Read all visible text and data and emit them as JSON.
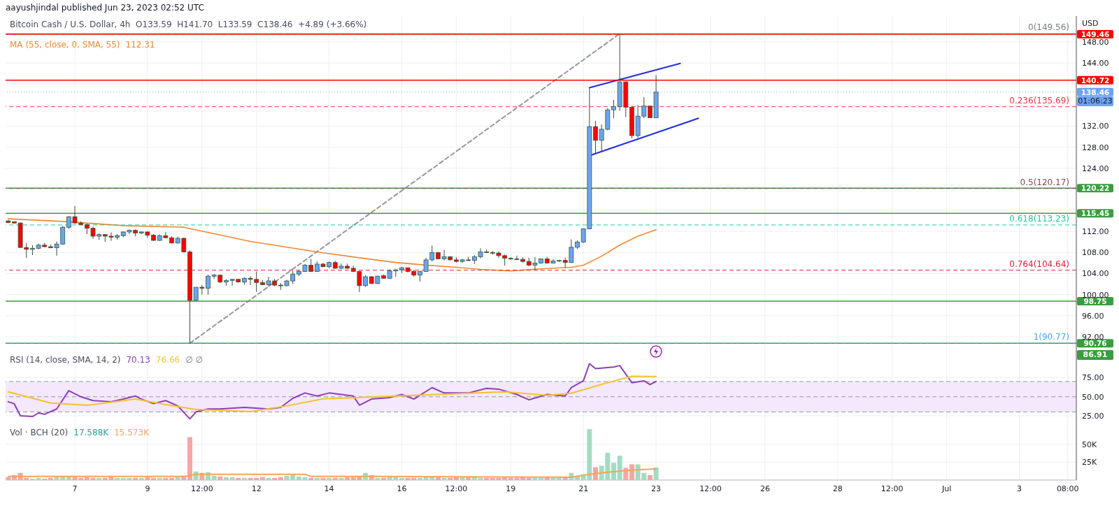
{
  "chart_data": [
    {
      "type": "candlestick",
      "title": "aayushjindal published Jun 23, 2023 02:52 UTC",
      "subtitle": "Bitcoin Cash / U.S. Dollar, 4h  O133.59  H141.70  L133.59  C138.46  +4.89 (+3.66%)",
      "ylabel": "USD",
      "x": [
        "2023-06-05T04:00",
        "2023-06-05T08:00",
        "2023-06-05T12:00",
        "2023-06-05T16:00",
        "2023-06-05T20:00",
        "2023-06-06T00:00",
        "2023-06-06T04:00",
        "2023-06-06T08:00",
        "2023-06-06T12:00",
        "2023-06-06T16:00",
        "2023-06-06T20:00",
        "2023-06-07T00:00",
        "2023-06-07T04:00",
        "2023-06-07T08:00",
        "2023-06-07T12:00",
        "2023-06-07T16:00",
        "2023-06-07T20:00",
        "2023-06-08T00:00",
        "2023-06-08T04:00",
        "2023-06-08T08:00",
        "2023-06-08T12:00",
        "2023-06-08T16:00",
        "2023-06-08T20:00",
        "2023-06-09T00:00",
        "2023-06-09T04:00",
        "2023-06-09T08:00",
        "2023-06-09T12:00",
        "2023-06-09T16:00",
        "2023-06-09T20:00",
        "2023-06-10T00:00",
        "2023-06-10T04:00",
        "2023-06-10T08:00",
        "2023-06-10T12:00",
        "2023-06-10T16:00",
        "2023-06-10T20:00",
        "2023-06-11T00:00",
        "2023-06-11T04:00",
        "2023-06-11T08:00",
        "2023-06-11T12:00",
        "2023-06-11T16:00",
        "2023-06-11T20:00",
        "2023-06-12T00:00",
        "2023-06-12T04:00",
        "2023-06-12T08:00",
        "2023-06-12T12:00",
        "2023-06-12T16:00",
        "2023-06-12T20:00",
        "2023-06-13T00:00",
        "2023-06-13T04:00",
        "2023-06-13T08:00",
        "2023-06-13T12:00",
        "2023-06-13T16:00",
        "2023-06-13T20:00",
        "2023-06-14T00:00",
        "2023-06-14T04:00",
        "2023-06-14T08:00",
        "2023-06-14T12:00",
        "2023-06-14T16:00",
        "2023-06-14T20:00",
        "2023-06-15T00:00",
        "2023-06-15T04:00",
        "2023-06-15T08:00",
        "2023-06-15T12:00",
        "2023-06-15T16:00",
        "2023-06-15T20:00",
        "2023-06-16T00:00",
        "2023-06-16T04:00",
        "2023-06-16T08:00",
        "2023-06-16T12:00",
        "2023-06-16T16:00",
        "2023-06-16T20:00",
        "2023-06-17T00:00",
        "2023-06-17T04:00",
        "2023-06-17T08:00",
        "2023-06-17T12:00",
        "2023-06-17T16:00",
        "2023-06-17T20:00",
        "2023-06-18T00:00",
        "2023-06-18T04:00",
        "2023-06-18T08:00",
        "2023-06-18T12:00",
        "2023-06-18T16:00",
        "2023-06-18T20:00",
        "2023-06-19T00:00",
        "2023-06-19T04:00",
        "2023-06-19T08:00",
        "2023-06-19T12:00",
        "2023-06-19T16:00",
        "2023-06-19T20:00",
        "2023-06-20T00:00",
        "2023-06-20T04:00",
        "2023-06-20T08:00",
        "2023-06-20T12:00",
        "2023-06-20T16:00",
        "2023-06-20T20:00",
        "2023-06-21T00:00",
        "2023-06-21T04:00",
        "2023-06-21T08:00",
        "2023-06-21T12:00",
        "2023-06-21T16:00",
        "2023-06-21T20:00",
        "2023-06-22T00:00",
        "2023-06-22T04:00",
        "2023-06-22T08:00",
        "2023-06-22T12:00",
        "2023-06-22T16:00",
        "2023-06-22T20:00",
        "2023-06-23T00:00"
      ],
      "ohlc": [
        [
          114.0,
          114.2,
          113.6,
          113.7
        ],
        [
          113.85,
          113.9,
          113.5,
          113.6
        ],
        [
          113.6,
          113.7,
          108.9,
          108.95
        ],
        [
          108.95,
          109.8,
          106.95,
          108.6
        ],
        [
          108.6,
          109.4,
          107.5,
          108.8
        ],
        [
          108.8,
          109.7,
          108.6,
          109.4
        ],
        [
          109.4,
          109.8,
          109.0,
          109.1
        ],
        [
          109.1,
          109.5,
          108.8,
          108.9
        ],
        [
          108.9,
          110.1,
          107.4,
          109.6
        ],
        [
          109.6,
          113.0,
          109.5,
          112.8
        ],
        [
          112.8,
          114.9,
          112.5,
          114.8
        ],
        [
          114.8,
          116.8,
          113.5,
          113.6
        ],
        [
          113.6,
          113.9,
          113.2,
          113.3
        ],
        [
          113.3,
          113.5,
          111.5,
          112.6
        ],
        [
          112.6,
          112.9,
          110.6,
          111.1
        ],
        [
          111.1,
          111.6,
          110.4,
          111.4
        ],
        [
          111.4,
          111.5,
          110.0,
          111.1
        ],
        [
          111.1,
          111.8,
          110.2,
          110.9
        ],
        [
          110.9,
          111.5,
          110.4,
          111.2
        ],
        [
          111.2,
          112.0,
          110.9,
          111.9
        ],
        [
          111.9,
          112.4,
          111.5,
          112.2
        ],
        [
          112.2,
          112.4,
          111.1,
          111.7
        ],
        [
          111.7,
          112.0,
          111.5,
          111.9
        ],
        [
          111.9,
          112.0,
          110.8,
          111.3
        ],
        [
          111.3,
          111.5,
          110.2,
          110.3
        ],
        [
          110.3,
          111.4,
          110.2,
          111.2
        ],
        [
          111.2,
          111.9,
          110.7,
          110.8
        ],
        [
          110.8,
          111.1,
          109.7,
          109.8
        ],
        [
          109.8,
          111.0,
          109.7,
          110.7
        ],
        [
          110.7,
          110.8,
          108.0,
          108.1
        ],
        [
          108.1,
          108.4,
          90.77,
          98.9
        ],
        [
          98.9,
          101.4,
          98.8,
          101.4
        ],
        [
          101.4,
          101.8,
          100.0,
          101.2
        ],
        [
          101.2,
          103.8,
          100.0,
          103.5
        ],
        [
          103.5,
          103.9,
          103.0,
          103.7
        ],
        [
          103.7,
          103.8,
          102.2,
          102.4
        ],
        [
          102.4,
          102.9,
          101.7,
          102.7
        ],
        [
          102.7,
          103.0,
          101.7,
          102.9
        ],
        [
          102.9,
          103.0,
          102.3,
          102.4
        ],
        [
          102.4,
          103.3,
          101.9,
          103.1
        ],
        [
          103.1,
          103.5,
          101.8,
          102.9
        ],
        [
          102.9,
          104.4,
          100.5,
          102.3
        ],
        [
          102.3,
          102.8,
          101.8,
          101.9
        ],
        [
          101.9,
          103.4,
          101.6,
          102.6
        ],
        [
          102.6,
          103.0,
          101.6,
          101.8
        ],
        [
          101.8,
          102.2,
          100.9,
          101.7
        ],
        [
          101.7,
          102.8,
          101.6,
          102.6
        ],
        [
          102.6,
          104.5,
          102.0,
          103.9
        ],
        [
          103.9,
          104.6,
          103.5,
          104.4
        ],
        [
          104.4,
          105.8,
          104.3,
          105.6
        ],
        [
          105.6,
          106.8,
          104.3,
          104.4
        ],
        [
          104.4,
          106.3,
          104.3,
          105.8
        ],
        [
          105.8,
          106.0,
          105.2,
          105.3
        ],
        [
          105.3,
          106.3,
          105.0,
          106.1
        ],
        [
          106.1,
          106.4,
          104.9,
          105.0
        ],
        [
          105.0,
          105.9,
          104.9,
          105.4
        ],
        [
          105.4,
          105.9,
          104.9,
          105.0
        ],
        [
          105.0,
          105.5,
          104.3,
          104.4
        ],
        [
          104.4,
          104.5,
          100.5,
          101.7
        ],
        [
          101.7,
          103.7,
          101.5,
          103.4
        ],
        [
          103.4,
          103.5,
          102.0,
          102.1
        ],
        [
          102.1,
          103.6,
          102.0,
          103.5
        ],
        [
          103.6,
          103.8,
          103.0,
          103.1
        ],
        [
          103.1,
          104.8,
          103.0,
          104.5
        ],
        [
          104.5,
          104.9,
          103.4,
          104.7
        ],
        [
          104.7,
          105.3,
          104.1,
          105.1
        ],
        [
          105.1,
          105.2,
          104.2,
          104.4
        ],
        [
          104.4,
          104.7,
          103.4,
          103.7
        ],
        [
          103.7,
          104.5,
          102.5,
          104.4
        ],
        [
          104.4,
          107.0,
          104.3,
          106.6
        ],
        [
          106.6,
          109.3,
          106.3,
          108.0
        ],
        [
          108.0,
          108.1,
          106.7,
          106.8
        ],
        [
          106.8,
          108.5,
          106.5,
          107.2
        ],
        [
          107.2,
          107.3,
          106.5,
          106.6
        ],
        [
          106.6,
          107.1,
          106.1,
          106.3
        ],
        [
          106.3,
          106.8,
          106.0,
          106.6
        ],
        [
          106.6,
          107.2,
          106.4,
          106.5
        ],
        [
          106.5,
          107.5,
          105.8,
          107.2
        ],
        [
          107.2,
          108.8,
          106.9,
          108.1
        ],
        [
          108.1,
          108.6,
          107.9,
          108.0
        ],
        [
          108.0,
          108.3,
          107.6,
          107.9
        ],
        [
          107.9,
          108.2,
          107.0,
          107.4
        ],
        [
          107.4,
          107.6,
          105.5,
          106.9
        ],
        [
          106.9,
          107.1,
          106.6,
          106.8
        ],
        [
          106.8,
          107.4,
          106.6,
          106.7
        ],
        [
          106.7,
          107.1,
          106.1,
          106.3
        ],
        [
          106.3,
          107.0,
          105.4,
          105.6
        ],
        [
          105.6,
          107.1,
          104.7,
          106.0
        ],
        [
          106.0,
          106.8,
          105.9,
          106.8
        ],
        [
          106.8,
          107.2,
          105.9,
          106.0
        ],
        [
          106.0,
          106.7,
          105.9,
          106.4
        ],
        [
          106.4,
          106.6,
          106.2,
          106.5
        ],
        [
          106.5,
          107.0,
          105.1,
          106.1
        ],
        [
          106.1,
          110.5,
          106.0,
          109.0
        ],
        [
          109.0,
          110.3,
          108.7,
          110.0
        ],
        [
          110.0,
          112.6,
          109.8,
          112.5
        ],
        [
          112.5,
          139.3,
          112.4,
          131.9
        ],
        [
          131.9,
          133.0,
          126.9,
          129.3
        ],
        [
          129.3,
          132.3,
          127.0,
          131.4
        ],
        [
          131.4,
          135.4,
          131.2,
          135.1
        ],
        [
          135.1,
          137.0,
          133.5,
          135.7
        ],
        [
          135.7,
          149.46,
          134.9,
          140.4
        ],
        [
          140.4,
          140.5,
          133.7,
          135.6
        ],
        [
          135.6,
          135.8,
          129.7,
          130.2
        ],
        [
          130.2,
          136.0,
          129.8,
          133.9
        ],
        [
          133.9,
          137.5,
          133.5,
          135.8
        ],
        [
          135.8,
          135.9,
          133.59,
          133.59
        ],
        [
          133.59,
          141.7,
          133.59,
          138.46
        ]
      ],
      "colors": [
        "#ff0000",
        "#ff0000",
        "#ff0000",
        "#ff0000",
        "#6ea3f2",
        "#6ea3f2",
        "#ff0000",
        "#ff0000",
        "#6ea3f2",
        "#6ea3f2",
        "#6ea3f2",
        "#ff0000",
        "#ff0000",
        "#ff0000",
        "#ff0000",
        "#6ea3f2",
        "#ff0000",
        "#ff0000",
        "#6ea3f2",
        "#6ea3f2",
        "#6ea3f2",
        "#ff0000",
        "#6ea3f2",
        "#ff0000",
        "#ff0000",
        "#6ea3f2",
        "#ff0000",
        "#ff0000",
        "#6ea3f2",
        "#ff0000",
        "#ff0000",
        "#6ea3f2",
        "#ff0000",
        "#6ea3f2",
        "#6ea3f2",
        "#ff0000",
        "#6ea3f2",
        "#6ea3f2",
        "#ff0000",
        "#6ea3f2",
        "#ff0000",
        "#ff0000",
        "#ff0000",
        "#6ea3f2",
        "#ff0000",
        "#ff0000",
        "#6ea3f2",
        "#6ea3f2",
        "#6ea3f2",
        "#6ea3f2",
        "#ff0000",
        "#6ea3f2",
        "#ff0000",
        "#6ea3f2",
        "#ff0000",
        "#6ea3f2",
        "#ff0000",
        "#ff0000",
        "#ff0000",
        "#6ea3f2",
        "#ff0000",
        "#6ea3f2",
        "#ff0000",
        "#6ea3f2",
        "#6ea3f2",
        "#6ea3f2",
        "#ff0000",
        "#ff0000",
        "#6ea3f2",
        "#6ea3f2",
        "#6ea3f2",
        "#ff0000",
        "#6ea3f2",
        "#ff0000",
        "#ff0000",
        "#6ea3f2",
        "#ff0000",
        "#6ea3f2",
        "#6ea3f2",
        "#ff0000",
        "#ff0000",
        "#ff0000",
        "#ff0000",
        "#ff0000",
        "#ff0000",
        "#ff0000",
        "#ff0000",
        "#6ea3f2",
        "#6ea3f2",
        "#ff0000",
        "#6ea3f2",
        "#6ea3f2",
        "#ff0000",
        "#6ea3f2",
        "#6ea3f2",
        "#6ea3f2",
        "#6ea3f2",
        "#ff0000",
        "#6ea3f2",
        "#6ea3f2",
        "#6ea3f2",
        "#6ea3f2",
        "#ff0000",
        "#ff0000",
        "#6ea3f2",
        "#6ea3f2",
        "#ff0000",
        "#6ea3f2"
      ],
      "series": [
        {
          "type": "line",
          "name": "MA (55, close, 0, SMA, 55)",
          "color": "#f0892f",
          "x": [
            "2023-06-05T04:00",
            "2023-06-06T16:00",
            "2023-06-08T08:00",
            "2023-06-10T00:00",
            "2023-06-11T20:00",
            "2023-06-13T16:00",
            "2023-06-14T20:00",
            "2023-06-15T20:00",
            "2023-06-16T16:00",
            "2023-06-17T12:00",
            "2023-06-18T04:00",
            "2023-06-19T00:00",
            "2023-06-19T20:00",
            "2023-06-20T16:00",
            "2023-06-21T00:00",
            "2023-06-21T12:00",
            "2023-06-22T00:00",
            "2023-06-22T12:00",
            "2023-06-23T00:00"
          ],
          "values": [
            114.4,
            113.9,
            113.1,
            112.8,
            110.1,
            108.1,
            107.0,
            106.1,
            105.6,
            105.2,
            104.8,
            104.5,
            104.9,
            105.2,
            105.6,
            107.3,
            109.4,
            111.1,
            112.31
          ]
        },
        {
          "type": "line",
          "color": "#1e2fe0",
          "x": [
            "2023-06-21T04:00",
            "2023-06-23T16:00"
          ],
          "values": [
            139.3,
            143.9
          ]
        },
        {
          "type": "line",
          "color": "#1e2fe0",
          "x": [
            "2023-06-21T04:00",
            "2023-06-24T04:00"
          ],
          "values": [
            126.4,
            133.5
          ]
        },
        {
          "type": "line",
          "color": "#9598a1",
          "line_style": "dashed",
          "x": [
            "2023-06-10T04:00",
            "2023-06-22T00:00"
          ],
          "values": [
            90.77,
            149.56
          ]
        }
      ],
      "xlim": [
        "2023-06-05T02:15",
        "2023-07-04T13:40"
      ],
      "xticks": [
        {
          "value": "2023-06-07",
          "label": null
        },
        {
          "value": "2023-06-09",
          "label": null
        },
        {
          "value": "2023-06-10T12:00",
          "label": null
        },
        {
          "value": "2023-06-12",
          "label": null
        },
        {
          "value": "2023-06-14",
          "label": null
        },
        {
          "value": "2023-06-16",
          "label": null
        },
        {
          "value": "2023-06-17T12:00",
          "label": null
        },
        {
          "value": "2023-06-19",
          "label": null
        },
        {
          "value": "2023-06-21",
          "label": null
        },
        {
          "value": "2023-06-23",
          "label": null
        },
        {
          "value": "2023-06-24T12:00",
          "label": null
        },
        {
          "value": "2023-06-26",
          "label": null
        },
        {
          "value": "2023-06-28",
          "label": null
        },
        {
          "value": "2023-06-29T12:00",
          "label": null
        },
        {
          "value": "2023-07-01",
          "label": null
        },
        {
          "value": "2023-07-03",
          "label": null
        },
        {
          "value": "2023-07-04T08:00",
          "label": null
        }
      ],
      "ylim": [
        89.2,
        152.9
      ],
      "yticks": [
        {
          "value": 92,
          "label": "92.00"
        },
        {
          "value": 96,
          "label": "96.00"
        },
        {
          "value": 100,
          "label": "100.00"
        },
        {
          "value": 104,
          "label": "104.00"
        },
        {
          "value": 108,
          "label": "108.00"
        },
        {
          "value": 112,
          "label": "112.00"
        },
        {
          "value": 116,
          "label": null
        },
        {
          "value": 120,
          "label": null
        },
        {
          "value": 124,
          "label": "124.00"
        },
        {
          "value": 128,
          "label": "128.00"
        },
        {
          "value": 132,
          "label": "132.00"
        },
        {
          "value": 136,
          "label": null
        },
        {
          "value": 140,
          "label": null
        },
        {
          "value": 144,
          "label": "144.00"
        },
        {
          "value": 148,
          "label": "148.00"
        }
      ],
      "ref_lines": [
        {
          "axis": "y",
          "value": 149.46,
          "label": "149.46",
          "color": "#ff0000",
          "line_style": "solid"
        },
        {
          "axis": "y",
          "value": 140.72,
          "label": "140.72",
          "color": "#ff0000",
          "line_style": "solid"
        },
        {
          "axis": "y",
          "value": 138.46,
          "label": "138.46",
          "color": "#6ea3f2",
          "line_style": "dotted"
        },
        {
          "axis": "y",
          "value": 120.22,
          "label": "120.22",
          "color": "#3a9d3f",
          "line_style": "solid"
        },
        {
          "axis": "y",
          "value": 115.45,
          "label": "115.45",
          "color": "#3a9d3f",
          "line_style": "solid"
        },
        {
          "axis": "y",
          "value": 98.75,
          "label": "98.75",
          "color": "#3a9d3f",
          "line_style": "solid"
        },
        {
          "axis": "y",
          "value": 90.76,
          "label": "90.76",
          "color": "#3a9d3f",
          "line_style": "solid"
        },
        {
          "axis": "y",
          "value": 149.56,
          "label": "0(149.56)",
          "color": "#787b86",
          "line_style": "dashed"
        },
        {
          "axis": "y",
          "value": 135.69,
          "label": "0.236(135.69)",
          "color": "#f23645",
          "line_style": "dashed"
        },
        {
          "axis": "y",
          "value": 120.17,
          "label": "0.5(120.17)",
          "color": "#81485b",
          "line_style": "dashed"
        },
        {
          "axis": "y",
          "value": 113.23,
          "label": "0.618(113.23)",
          "color": "#22c9a0",
          "line_style": "dashed"
        },
        {
          "axis": "y",
          "value": 104.64,
          "label": "0.764(104.64)",
          "color": "#e0203a",
          "line_style": "dashed"
        },
        {
          "axis": "y",
          "value": 90.77,
          "label": "1(90.77)",
          "color": "#4fa8e8",
          "line_style": "dashed"
        }
      ],
      "annotations": [
        "112.31",
        "01:06:23",
        "86.91"
      ],
      "grid": true,
      "tick_labels": "y"
    },
    {
      "type": "line",
      "title": "RSI (14, close, SMA, 14, 2)",
      "series": [
        {
          "color": "#8e3fb5",
          "x": [
            "2023-06-05T04:00",
            "2023-06-05T08:00",
            "2023-06-05T12:00",
            "2023-06-05T20:00",
            "2023-06-06T00:00",
            "2023-06-06T04:00",
            "2023-06-06T12:00",
            "2023-06-06T20:00",
            "2023-06-07T04:00",
            "2023-06-07T12:00",
            "2023-06-08T00:00",
            "2023-06-08T08:00",
            "2023-06-08T16:00",
            "2023-06-08T20:00",
            "2023-06-09T04:00",
            "2023-06-09T12:00",
            "2023-06-09T20:00",
            "2023-06-10T04:00",
            "2023-06-10T08:00",
            "2023-06-10T16:00",
            "2023-06-11T00:00",
            "2023-06-11T16:00",
            "2023-06-12T08:00",
            "2023-06-12T16:00",
            "2023-06-13T00:00",
            "2023-06-13T08:00",
            "2023-06-13T16:00",
            "2023-06-14T00:00",
            "2023-06-14T16:00",
            "2023-06-14T20:00",
            "2023-06-15T04:00",
            "2023-06-15T16:00",
            "2023-06-16T00:00",
            "2023-06-16T08:00",
            "2023-06-16T20:00",
            "2023-06-17T04:00",
            "2023-06-17T20:00",
            "2023-06-18T08:00",
            "2023-06-18T16:00",
            "2023-06-19T04:00",
            "2023-06-19T12:00",
            "2023-06-20T00:00",
            "2023-06-20T12:00",
            "2023-06-20T16:00",
            "2023-06-21T00:00",
            "2023-06-21T04:00",
            "2023-06-21T08:00",
            "2023-06-21T20:00",
            "2023-06-22T00:00",
            "2023-06-22T08:00",
            "2023-06-22T16:00",
            "2023-06-22T20:00",
            "2023-06-23T00:00"
          ],
          "values": [
            43.5,
            40.7,
            25,
            24,
            28.7,
            27,
            34,
            58,
            50,
            45,
            43.5,
            47,
            51,
            47,
            41,
            45,
            38,
            21,
            30,
            34,
            34,
            36,
            34,
            36,
            48,
            55,
            51,
            55,
            51,
            39,
            47,
            49,
            53,
            47,
            62,
            55,
            55,
            61,
            60,
            53,
            46,
            53,
            51,
            62,
            71,
            93.5,
            87,
            89,
            91,
            68.5,
            71,
            66,
            70.13
          ]
        },
        {
          "color": "#f2c230",
          "x": [
            "2023-06-05T04:00",
            "2023-06-06T08:00",
            "2023-06-07T08:00",
            "2023-06-08T16:00",
            "2023-06-09T12:00",
            "2023-06-10T08:00",
            "2023-06-11T20:00",
            "2023-06-12T20:00",
            "2023-06-13T20:00",
            "2023-06-15T20:00",
            "2023-06-17T20:00",
            "2023-06-18T20:00",
            "2023-06-20T00:00",
            "2023-06-20T16:00",
            "2023-06-21T16:00",
            "2023-06-22T08:00",
            "2023-06-23T00:00"
          ],
          "values": [
            56.5,
            41.7,
            38.9,
            47,
            39.8,
            33.3,
            30.6,
            38,
            47.2,
            50.9,
            54.6,
            56.5,
            51.9,
            54.6,
            68.5,
            76.9,
            76.66
          ]
        }
      ],
      "annotations": [
        "70.13",
        "76.66",
        "∅ ∅"
      ],
      "xlim": [
        "2023-06-05T02:15",
        "2023-07-04T13:40"
      ],
      "xticks": [
        {
          "value": "2023-06-07",
          "label": null
        },
        {
          "value": "2023-06-09",
          "label": null
        },
        {
          "value": "2023-06-10T12:00",
          "label": null
        },
        {
          "value": "2023-06-12",
          "label": null
        },
        {
          "value": "2023-06-14",
          "label": null
        },
        {
          "value": "2023-06-16",
          "label": null
        },
        {
          "value": "2023-06-17T12:00",
          "label": null
        },
        {
          "value": "2023-06-19",
          "label": null
        },
        {
          "value": "2023-06-21",
          "label": null
        },
        {
          "value": "2023-06-23",
          "label": null
        },
        {
          "value": "2023-06-24T12:00",
          "label": null
        },
        {
          "value": "2023-06-26",
          "label": null
        },
        {
          "value": "2023-06-28",
          "label": null
        },
        {
          "value": "2023-06-29T12:00",
          "label": null
        },
        {
          "value": "2023-07-01",
          "label": null
        },
        {
          "value": "2023-07-03",
          "label": null
        },
        {
          "value": "2023-07-04T08:00",
          "label": null
        }
      ],
      "ylim": [
        14,
        109.5
      ],
      "yticks": [
        {
          "value": 25,
          "label": "25.00"
        },
        {
          "value": 50,
          "label": "50.00"
        },
        {
          "value": 75,
          "label": "75.00"
        }
      ],
      "bands": [
        {
          "axis": "y",
          "from": 30,
          "to": 70,
          "color": "#f3e8fc"
        }
      ],
      "ref_lines": [
        {
          "axis": "y",
          "value": 70,
          "color": "#9598a1",
          "line_style": "dashed"
        },
        {
          "axis": "y",
          "value": 50,
          "color": "#9598a1",
          "line_style": "dashed"
        },
        {
          "axis": "y",
          "value": 30,
          "color": "#9598a1",
          "line_style": "dashed"
        }
      ],
      "grid": true,
      "tick_labels": "y"
    },
    {
      "type": "bar",
      "title": "Vol · BCH (20)",
      "x": [
        "2023-06-05T04:00",
        "2023-06-05T08:00",
        "2023-06-05T12:00",
        "2023-06-05T16:00",
        "2023-06-05T20:00",
        "2023-06-06T00:00",
        "2023-06-06T04:00",
        "2023-06-06T08:00",
        "2023-06-06T12:00",
        "2023-06-06T16:00",
        "2023-06-06T20:00",
        "2023-06-07T00:00",
        "2023-06-07T04:00",
        "2023-06-07T08:00",
        "2023-06-07T12:00",
        "2023-06-07T16:00",
        "2023-06-07T20:00",
        "2023-06-08T00:00",
        "2023-06-08T04:00",
        "2023-06-08T08:00",
        "2023-06-08T12:00",
        "2023-06-08T16:00",
        "2023-06-08T20:00",
        "2023-06-09T00:00",
        "2023-06-09T04:00",
        "2023-06-09T08:00",
        "2023-06-09T12:00",
        "2023-06-09T16:00",
        "2023-06-09T20:00",
        "2023-06-10T00:00",
        "2023-06-10T04:00",
        "2023-06-10T08:00",
        "2023-06-10T12:00",
        "2023-06-10T16:00",
        "2023-06-10T20:00",
        "2023-06-11T00:00",
        "2023-06-11T04:00",
        "2023-06-11T08:00",
        "2023-06-11T12:00",
        "2023-06-11T16:00",
        "2023-06-11T20:00",
        "2023-06-12T00:00",
        "2023-06-12T04:00",
        "2023-06-12T08:00",
        "2023-06-12T12:00",
        "2023-06-12T16:00",
        "2023-06-12T20:00",
        "2023-06-13T00:00",
        "2023-06-13T04:00",
        "2023-06-13T08:00",
        "2023-06-13T12:00",
        "2023-06-13T16:00",
        "2023-06-13T20:00",
        "2023-06-14T00:00",
        "2023-06-14T04:00",
        "2023-06-14T08:00",
        "2023-06-14T12:00",
        "2023-06-14T16:00",
        "2023-06-14T20:00",
        "2023-06-15T00:00",
        "2023-06-15T04:00",
        "2023-06-15T08:00",
        "2023-06-15T12:00",
        "2023-06-15T16:00",
        "2023-06-15T20:00",
        "2023-06-16T00:00",
        "2023-06-16T04:00",
        "2023-06-16T08:00",
        "2023-06-16T12:00",
        "2023-06-16T16:00",
        "2023-06-16T20:00",
        "2023-06-17T00:00",
        "2023-06-17T04:00",
        "2023-06-17T08:00",
        "2023-06-17T12:00",
        "2023-06-17T16:00",
        "2023-06-17T20:00",
        "2023-06-18T00:00",
        "2023-06-18T04:00",
        "2023-06-18T08:00",
        "2023-06-18T12:00",
        "2023-06-18T16:00",
        "2023-06-18T20:00",
        "2023-06-19T00:00",
        "2023-06-19T04:00",
        "2023-06-19T08:00",
        "2023-06-19T12:00",
        "2023-06-19T16:00",
        "2023-06-19T20:00",
        "2023-06-20T00:00",
        "2023-06-20T04:00",
        "2023-06-20T08:00",
        "2023-06-20T12:00",
        "2023-06-20T16:00",
        "2023-06-20T20:00",
        "2023-06-21T00:00",
        "2023-06-21T04:00",
        "2023-06-21T08:00",
        "2023-06-21T12:00",
        "2023-06-21T16:00",
        "2023-06-21T20:00",
        "2023-06-22T00:00",
        "2023-06-22T04:00",
        "2023-06-22T08:00",
        "2023-06-22T12:00",
        "2023-06-22T16:00",
        "2023-06-22T20:00",
        "2023-06-23T00:00"
      ],
      "series": [
        {
          "color": "#26a69a",
          "values": [
            4000,
            7000,
            10000,
            3000,
            2000,
            3000,
            2000,
            3000,
            5000,
            6000,
            5000,
            4000,
            3000,
            4000,
            3000,
            3000,
            3000,
            4000,
            3000,
            3000,
            3000,
            3000,
            3000,
            4000,
            3000,
            3000,
            3000,
            3000,
            4000,
            6000,
            60000,
            12000,
            10000,
            11000,
            6000,
            5000,
            4000,
            4000,
            3000,
            3000,
            3000,
            3000,
            4000,
            3000,
            3000,
            4000,
            6000,
            7000,
            5000,
            4000,
            3000,
            3000,
            3000,
            3000,
            3000,
            3000,
            4000,
            4000,
            5000,
            10000,
            7000,
            3000,
            3000,
            4000,
            4000,
            3000,
            3000,
            3000,
            3000,
            4000,
            5000,
            4000,
            3000,
            3000,
            4000,
            4000,
            5000,
            4000,
            3000,
            3000,
            3000,
            3000,
            4000,
            3000,
            3000,
            4000,
            3000,
            3000,
            3000,
            4000,
            3000,
            3000,
            4000,
            10000,
            6000,
            8000,
            71000,
            18000,
            20000,
            38000,
            24000,
            34000,
            17000,
            22000,
            22000,
            10000,
            7000,
            17588
          ],
          "colors": [
            "#f7a5a5",
            "#f7a5a5",
            "#f7a5a5",
            "#f7a5a5",
            "#a3dcc2",
            "#a3dcc2",
            "#f7a5a5",
            "#f7a5a5",
            "#a3dcc2",
            "#a3dcc2",
            "#a3dcc2",
            "#f7a5a5",
            "#f7a5a5",
            "#f7a5a5",
            "#f7a5a5",
            "#a3dcc2",
            "#f7a5a5",
            "#f7a5a5",
            "#a3dcc2",
            "#a3dcc2",
            "#a3dcc2",
            "#f7a5a5",
            "#a3dcc2",
            "#f7a5a5",
            "#f7a5a5",
            "#a3dcc2",
            "#f7a5a5",
            "#f7a5a5",
            "#a3dcc2",
            "#f7a5a5",
            "#f7a5a5",
            "#a3dcc2",
            "#f7a5a5",
            "#a3dcc2",
            "#a3dcc2",
            "#f7a5a5",
            "#a3dcc2",
            "#a3dcc2",
            "#f7a5a5",
            "#a3dcc2",
            "#f7a5a5",
            "#f7a5a5",
            "#f7a5a5",
            "#a3dcc2",
            "#f7a5a5",
            "#f7a5a5",
            "#a3dcc2",
            "#a3dcc2",
            "#a3dcc2",
            "#a3dcc2",
            "#f7a5a5",
            "#a3dcc2",
            "#f7a5a5",
            "#a3dcc2",
            "#f7a5a5",
            "#a3dcc2",
            "#f7a5a5",
            "#f7a5a5",
            "#f7a5a5",
            "#a3dcc2",
            "#f7a5a5",
            "#a3dcc2",
            "#f7a5a5",
            "#a3dcc2",
            "#a3dcc2",
            "#a3dcc2",
            "#f7a5a5",
            "#f7a5a5",
            "#a3dcc2",
            "#a3dcc2",
            "#a3dcc2",
            "#f7a5a5",
            "#a3dcc2",
            "#f7a5a5",
            "#f7a5a5",
            "#a3dcc2",
            "#f7a5a5",
            "#a3dcc2",
            "#a3dcc2",
            "#f7a5a5",
            "#f7a5a5",
            "#f7a5a5",
            "#f7a5a5",
            "#f7a5a5",
            "#f7a5a5",
            "#f7a5a5",
            "#f7a5a5",
            "#a3dcc2",
            "#a3dcc2",
            "#f7a5a5",
            "#a3dcc2",
            "#a3dcc2",
            "#f7a5a5",
            "#a3dcc2",
            "#a3dcc2",
            "#a3dcc2",
            "#a3dcc2",
            "#f7a5a5",
            "#a3dcc2",
            "#a3dcc2",
            "#a3dcc2",
            "#a3dcc2",
            "#f7a5a5",
            "#f7a5a5",
            "#a3dcc2",
            "#a3dcc2",
            "#f7a5a5",
            "#a3dcc2"
          ]
        },
        {
          "type": "line",
          "color": "#f7a35c",
          "x": [
            "2023-06-05T04:00",
            "2023-06-10T00:00",
            "2023-06-10T08:00",
            "2023-06-13T08:00",
            "2023-06-13T12:00",
            "2023-06-15T00:00",
            "2023-06-20T16:00",
            "2023-06-21T04:00",
            "2023-06-21T16:00",
            "2023-06-22T08:00",
            "2023-06-23T00:00"
          ],
          "values": [
            5000,
            5000,
            8000,
            8000,
            5000,
            5000,
            4000,
            8000,
            11000,
            14000,
            15573
          ]
        }
      ],
      "annotations": [
        "17.588K",
        "15.573K"
      ],
      "xlim": [
        "2023-06-05T02:15",
        "2023-07-04T13:40"
      ],
      "xticks": [
        {
          "value": "2023-06-07",
          "label": "7"
        },
        {
          "value": "2023-06-09",
          "label": "9"
        },
        {
          "value": "2023-06-10T12:00",
          "label": "12:00"
        },
        {
          "value": "2023-06-12",
          "label": "12"
        },
        {
          "value": "2023-06-14",
          "label": "14"
        },
        {
          "value": "2023-06-16",
          "label": "16"
        },
        {
          "value": "2023-06-17T12:00",
          "label": "12:00"
        },
        {
          "value": "2023-06-19",
          "label": "19"
        },
        {
          "value": "2023-06-21",
          "label": "21"
        },
        {
          "value": "2023-06-23",
          "label": "23"
        },
        {
          "value": "2023-06-24T12:00",
          "label": "12:00"
        },
        {
          "value": "2023-06-26",
          "label": "26"
        },
        {
          "value": "2023-06-28",
          "label": "28"
        },
        {
          "value": "2023-06-29T12:00",
          "label": "12:00"
        },
        {
          "value": "2023-07-01",
          "label": "Jul"
        },
        {
          "value": "2023-07-03",
          "label": "3"
        },
        {
          "value": "2023-07-04T08:00",
          "label": "08:00"
        }
      ],
      "ylim": [
        0,
        78000
      ],
      "yticks": [
        {
          "value": 25000,
          "label": "25K"
        },
        {
          "value": 50000,
          "label": "50K"
        }
      ],
      "grid": true
    }
  ]
}
